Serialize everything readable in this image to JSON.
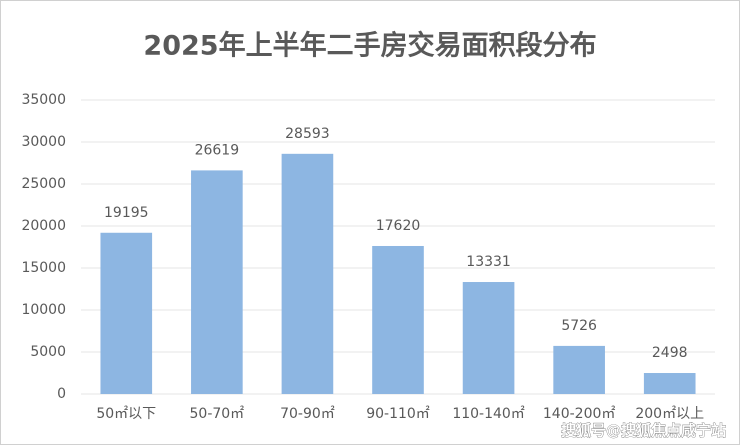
{
  "chart_data": {
    "type": "bar",
    "title": "2025年上半年二手房交易面积段分布",
    "categories": [
      "50㎡以下",
      "50-70㎡",
      "70-90㎡",
      "90-110㎡",
      "110-140㎡",
      "140-200㎡",
      "200㎡以上"
    ],
    "values": [
      19195,
      26619,
      28593,
      17620,
      13331,
      5726,
      2498
    ],
    "color": "#8db6e2",
    "ylim": [
      0,
      35000
    ],
    "yticks": [
      0,
      5000,
      10000,
      15000,
      20000,
      25000,
      30000,
      35000
    ],
    "grid": true
  },
  "watermark": "搜狐号@搜狐焦点咸宁站"
}
